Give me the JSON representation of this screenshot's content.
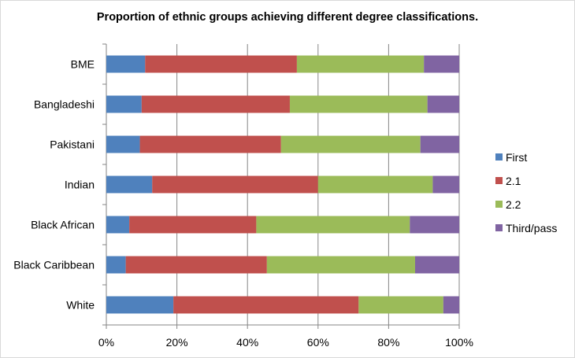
{
  "chart_data": {
    "type": "bar",
    "orientation": "horizontal",
    "stacked": "percent",
    "title": "Proportion of ethnic groups achieving different degree classifications.",
    "categories": [
      "White",
      "Black Caribbean",
      "Black African",
      "Indian",
      "Pakistani",
      "Bangladeshi",
      "BME"
    ],
    "series": [
      {
        "name": "First",
        "color": "#4f81bd",
        "values": [
          19,
          5.5,
          6.5,
          13,
          9.5,
          10,
          11
        ]
      },
      {
        "name": "2.1",
        "color": "#c0504d",
        "values": [
          52.5,
          40,
          36,
          47,
          40,
          42,
          43
        ]
      },
      {
        "name": "2.2",
        "color": "#9bbb59",
        "values": [
          24,
          42,
          43.5,
          32.5,
          39.5,
          39,
          36
        ]
      },
      {
        "name": "Third/pass",
        "color": "#8064a2",
        "values": [
          4.5,
          12.5,
          14,
          7.5,
          11,
          9,
          10
        ]
      }
    ],
    "x_ticks": [
      "0%",
      "20%",
      "40%",
      "60%",
      "80%",
      "100%"
    ],
    "xlim": [
      0,
      100
    ],
    "grid": true,
    "legend_position": "right"
  }
}
